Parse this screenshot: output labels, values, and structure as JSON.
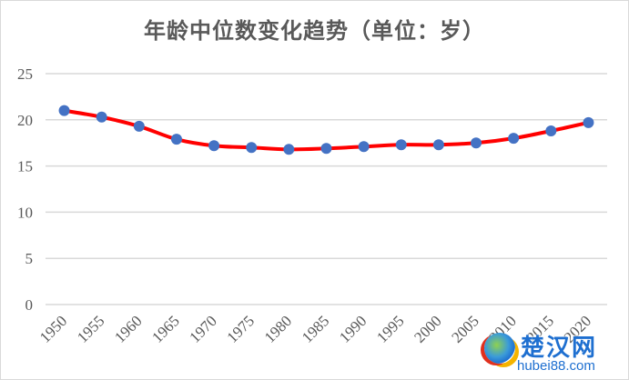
{
  "chart_data": {
    "type": "line",
    "title": "年龄中位数变化趋势（单位：岁）",
    "xlabel": "",
    "ylabel": "",
    "categories": [
      "1950",
      "1955",
      "1960",
      "1965",
      "1970",
      "1975",
      "1980",
      "1985",
      "1990",
      "1995",
      "2000",
      "2005",
      "2010",
      "2015",
      "2020"
    ],
    "series": [
      {
        "name": "年龄中位数",
        "values": [
          21.0,
          20.3,
          19.3,
          17.9,
          17.2,
          17.0,
          16.8,
          16.9,
          17.1,
          17.3,
          17.3,
          17.5,
          18.0,
          18.8,
          19.7
        ],
        "line_color": "#ff0000",
        "marker_color": "#4472c4",
        "smooth": true
      }
    ],
    "ylim": [
      0,
      25
    ],
    "yticks": [
      "0",
      "5",
      "10",
      "15",
      "20",
      "25"
    ],
    "grid": true,
    "legend": "none",
    "x_tick_rotation": -45
  },
  "watermark": {
    "name": "楚汉网",
    "url": "hubei88.com"
  }
}
